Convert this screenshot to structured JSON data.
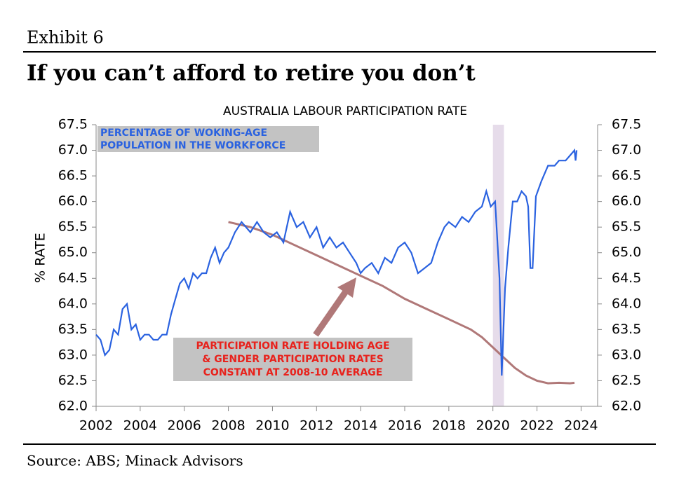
{
  "header": {
    "exhibit": "Exhibit 6",
    "title": "If you can’t afford to retire you don’t"
  },
  "chart_data": {
    "type": "line",
    "title": "AUSTRALIA LABOUR PARTICIPATION RATE",
    "y_label": "% RATE",
    "xlim": [
      2002,
      2024.75
    ],
    "xticks": [
      2002,
      2004,
      2006,
      2008,
      2010,
      2012,
      2014,
      2016,
      2018,
      2020,
      2022,
      2024
    ],
    "ylim": [
      62,
      67.5
    ],
    "yticks": [
      {
        "value": 62,
        "label": "62.0"
      },
      {
        "value": 62.5,
        "label": "62.5"
      },
      {
        "value": 63,
        "label": "63.0"
      },
      {
        "value": 63.5,
        "label": "63.5"
      },
      {
        "value": 64,
        "label": "64.0"
      },
      {
        "value": 64.5,
        "label": "64.5"
      },
      {
        "value": 65,
        "label": "65.0"
      },
      {
        "value": 65.5,
        "label": "65.5"
      },
      {
        "value": 66,
        "label": "66.0"
      },
      {
        "value": 66.5,
        "label": "66.5"
      },
      {
        "value": 67,
        "label": "67.0"
      },
      {
        "value": 67.5,
        "label": "67.5"
      }
    ],
    "shaded_range": [
      2020,
      2020.5
    ],
    "shaded_color": "#e6dcea",
    "series": [
      {
        "color": "#2a62e0",
        "x": [
          2002.0,
          2002.2,
          2002.4,
          2002.6,
          2002.8,
          2003.0,
          2003.2,
          2003.4,
          2003.6,
          2003.8,
          2004.0,
          2004.2,
          2004.4,
          2004.6,
          2004.8,
          2005.0,
          2005.2,
          2005.4,
          2005.6,
          2005.8,
          2006.0,
          2006.2,
          2006.4,
          2006.6,
          2006.8,
          2007.0,
          2007.2,
          2007.4,
          2007.6,
          2007.8,
          2008.0,
          2008.3,
          2008.6,
          2009.0,
          2009.3,
          2009.6,
          2009.9,
          2010.2,
          2010.5,
          2010.8,
          2011.1,
          2011.4,
          2011.7,
          2012.0,
          2012.3,
          2012.6,
          2012.9,
          2013.2,
          2013.5,
          2013.8,
          2014.0,
          2014.2,
          2014.5,
          2014.8,
          2015.1,
          2015.4,
          2015.7,
          2016.0,
          2016.3,
          2016.6,
          2016.9,
          2017.2,
          2017.5,
          2017.8,
          2018.0,
          2018.3,
          2018.6,
          2018.9,
          2019.2,
          2019.5,
          2019.7,
          2019.9,
          2020.1,
          2020.3,
          2020.4,
          2020.55,
          2020.7,
          2020.9,
          2021.1,
          2021.3,
          2021.5,
          2021.6,
          2021.7,
          2021.8,
          2021.95,
          2022.2,
          2022.5,
          2022.8,
          2023.0,
          2023.3,
          2023.5,
          2023.7,
          2023.75,
          2023.8
        ],
        "values": [
          63.4,
          63.3,
          63.0,
          63.1,
          63.5,
          63.4,
          63.9,
          64.0,
          63.5,
          63.6,
          63.3,
          63.4,
          63.4,
          63.3,
          63.3,
          63.4,
          63.4,
          63.8,
          64.1,
          64.4,
          64.5,
          64.3,
          64.6,
          64.5,
          64.6,
          64.6,
          64.9,
          65.1,
          64.8,
          65.0,
          65.1,
          65.4,
          65.6,
          65.4,
          65.6,
          65.4,
          65.3,
          65.4,
          65.2,
          65.8,
          65.5,
          65.6,
          65.3,
          65.5,
          65.1,
          65.3,
          65.1,
          65.2,
          65.0,
          64.8,
          64.6,
          64.7,
          64.8,
          64.6,
          64.9,
          64.8,
          65.1,
          65.2,
          65.0,
          64.6,
          64.7,
          64.8,
          65.2,
          65.5,
          65.6,
          65.5,
          65.7,
          65.6,
          65.8,
          65.9,
          66.2,
          65.9,
          66.0,
          64.5,
          62.6,
          64.3,
          65.1,
          66.0,
          66.0,
          66.2,
          66.1,
          65.9,
          64.7,
          64.7,
          66.1,
          66.4,
          66.7,
          66.7,
          66.8,
          66.8,
          66.9,
          67.0,
          66.8,
          67.0
        ]
      },
      {
        "color": "#b07878",
        "x": [
          2008.0,
          2009.0,
          2010.0,
          2011.0,
          2012.0,
          2013.0,
          2014.0,
          2015.0,
          2016.0,
          2017.0,
          2018.0,
          2019.0,
          2019.5,
          2020.0,
          2020.5,
          2021.0,
          2021.5,
          2022.0,
          2022.5,
          2023.0,
          2023.5,
          2023.7
        ],
        "values": [
          65.6,
          65.5,
          65.35,
          65.15,
          64.95,
          64.75,
          64.55,
          64.35,
          64.1,
          63.9,
          63.7,
          63.5,
          63.35,
          63.15,
          62.95,
          62.75,
          62.6,
          62.5,
          62.45,
          62.46,
          62.45,
          62.46
        ]
      }
    ],
    "annotations": [
      {
        "lines": [
          "PERCENTAGE OF WOKING-AGE",
          "POPULATION IN THE WORKFORCE"
        ],
        "color": "#2a62e0"
      },
      {
        "lines": [
          "PARTICIPATION RATE HOLDING AGE",
          "& GENDER PARTICIPATION RATES",
          "CONSTANT AT 2008-10 AVERAGE"
        ],
        "color": "#e8221c"
      }
    ]
  },
  "footer": {
    "source": "Source: ABS; Minack Advisors"
  }
}
